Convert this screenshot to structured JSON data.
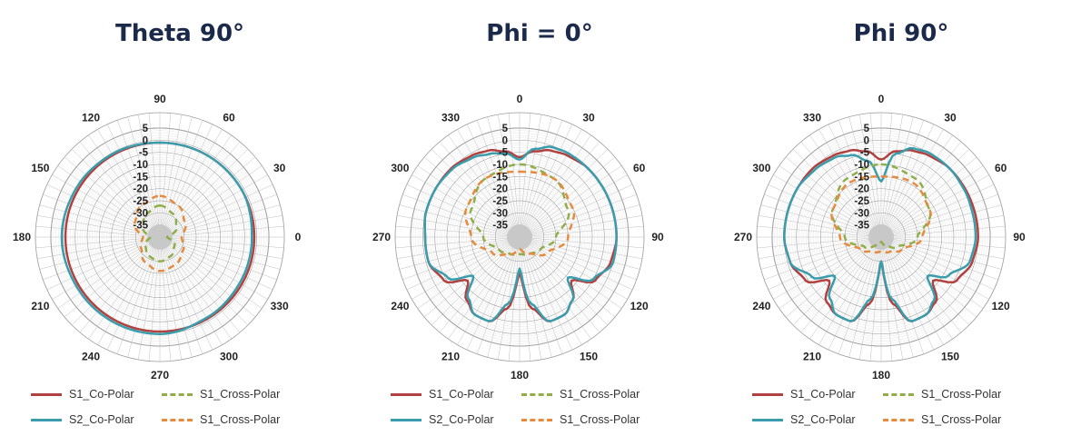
{
  "chart_data": [
    {
      "type": "polar-line",
      "title": "Theta 90°",
      "angle_labels": [
        {
          "text": "90",
          "angle": 0
        },
        {
          "text": "60",
          "angle": 30
        },
        {
          "text": "30",
          "angle": 60
        },
        {
          "text": "0",
          "angle": 90
        },
        {
          "text": "330",
          "angle": 120
        },
        {
          "text": "300",
          "angle": 150
        },
        {
          "text": "270",
          "angle": 180
        },
        {
          "text": "240",
          "angle": 210
        },
        {
          "text": "210",
          "angle": 240
        },
        {
          "text": "180",
          "angle": 270
        },
        {
          "text": "150",
          "angle": 300
        },
        {
          "text": "120",
          "angle": 330
        }
      ],
      "radial_ticks": [
        "5",
        "0",
        "-5",
        "-10",
        "-15",
        "-20",
        "-25",
        "-30",
        "-35"
      ],
      "rlim": [
        -40,
        5
      ],
      "legend_rows": [
        [
          {
            "label": "S1_Co-Polar",
            "color": "#b0413e",
            "dashed": false
          },
          {
            "label": "S1_Cross-Polar",
            "color": "#8fae4a",
            "dashed": true
          }
        ],
        [
          {
            "label": "S2_Co-Polar",
            "color": "#3a9dad",
            "dashed": false
          },
          {
            "label": "S1_Cross-Polar",
            "color": "#e68a3e",
            "dashed": true
          }
        ]
      ],
      "series": [
        {
          "name": "S1_Co-Polar",
          "color": "#b0413e",
          "dashed": false,
          "width": 2.5,
          "angles": [
            0,
            30,
            60,
            90,
            120,
            150,
            180,
            210,
            240,
            270,
            300,
            330
          ],
          "values": [
            -1,
            -1,
            -1,
            -1,
            -1,
            -1,
            -1,
            -1,
            -1,
            -1,
            -1,
            -1
          ]
        },
        {
          "name": "S2_Co-Polar",
          "color": "#3a9dad",
          "dashed": false,
          "width": 2.5,
          "angles": [
            0,
            30,
            60,
            90,
            120,
            150,
            180,
            210,
            240,
            270,
            300,
            330
          ],
          "values": [
            -1,
            -1,
            -1,
            -2,
            -2,
            -1.5,
            0,
            0,
            0,
            0.5,
            0,
            -0.5
          ]
        },
        {
          "name": "S1_Cross-Polar",
          "color": "#8fae4a",
          "dashed": true,
          "width": 2.5,
          "angles": [
            0,
            30,
            60,
            90,
            120,
            150,
            180,
            210,
            240,
            270,
            300,
            330
          ],
          "values": [
            -27,
            -29,
            -32,
            -37,
            -33,
            -31,
            -30,
            -31,
            -33,
            -36,
            -32,
            -29
          ]
        },
        {
          "name": "S1_Cross-Polar",
          "color": "#e68a3e",
          "dashed": true,
          "width": 2.5,
          "angles": [
            0,
            30,
            60,
            90,
            120,
            150,
            180,
            210,
            240,
            270,
            300,
            330
          ],
          "values": [
            -23,
            -25,
            -28,
            -31,
            -29,
            -27,
            -26,
            -28,
            -31,
            -33,
            -28,
            -25
          ]
        }
      ]
    },
    {
      "type": "polar-line",
      "title": "Phi = 0°",
      "angle_labels": [
        {
          "text": "0",
          "angle": 0
        },
        {
          "text": "30",
          "angle": 30
        },
        {
          "text": "60",
          "angle": 60
        },
        {
          "text": "90",
          "angle": 90
        },
        {
          "text": "120",
          "angle": 120
        },
        {
          "text": "150",
          "angle": 150
        },
        {
          "text": "180",
          "angle": 180
        },
        {
          "text": "210",
          "angle": 210
        },
        {
          "text": "240",
          "angle": 240
        },
        {
          "text": "270",
          "angle": 270
        },
        {
          "text": "300",
          "angle": 300
        },
        {
          "text": "330",
          "angle": 330
        }
      ],
      "radial_ticks": [
        "5",
        "0",
        "-5",
        "-10",
        "-15",
        "-20",
        "-25",
        "-30",
        "-35"
      ],
      "rlim": [
        -40,
        5
      ],
      "legend_rows": [
        [
          {
            "label": "S1_Co-Polar",
            "color": "#b0413e",
            "dashed": false
          },
          {
            "label": "S1_Cross-Polar",
            "color": "#8fae4a",
            "dashed": true
          }
        ],
        [
          {
            "label": "S2_Co-Polar",
            "color": "#3a9dad",
            "dashed": false
          },
          {
            "label": "S1_Cross-Polar",
            "color": "#e68a3e",
            "dashed": true
          }
        ]
      ],
      "series": [
        {
          "name": "S1_Co-Polar",
          "color": "#b0413e",
          "dashed": false,
          "width": 2.5,
          "angles": [
            0,
            10,
            20,
            30,
            45,
            60,
            75,
            90,
            105,
            120,
            130,
            140,
            150,
            160,
            170,
            180,
            190,
            200,
            210,
            220,
            230,
            240,
            255,
            270,
            285,
            300,
            315,
            330,
            340,
            350
          ],
          "values": [
            -7,
            -4,
            -2,
            -1,
            0,
            0,
            0,
            0,
            -1,
            -4,
            -12,
            -6,
            -3,
            -3,
            -10,
            -25,
            -10,
            -3,
            -3,
            -6,
            -12,
            -4,
            -1,
            -1,
            0,
            0,
            0,
            -1,
            -2,
            -4
          ]
        },
        {
          "name": "S2_Co-Polar",
          "color": "#3a9dad",
          "dashed": false,
          "width": 2.5,
          "angles": [
            0,
            10,
            20,
            30,
            45,
            60,
            75,
            90,
            105,
            120,
            130,
            140,
            150,
            160,
            170,
            180,
            190,
            200,
            210,
            220,
            230,
            240,
            255,
            270,
            285,
            300,
            315,
            330,
            340,
            350
          ],
          "values": [
            -8,
            -3,
            -0.5,
            0,
            0,
            0,
            0,
            0,
            0,
            -5,
            -14,
            -6,
            -3,
            -3,
            -12,
            -27,
            -12,
            -3,
            -3,
            -7,
            -15,
            -6,
            -1,
            -1,
            0,
            0,
            -0.5,
            -2,
            -3.5,
            -5
          ]
        },
        {
          "name": "S1_Cross-Polar",
          "color": "#8fae4a",
          "dashed": true,
          "width": 2.5,
          "angles": [
            0,
            30,
            60,
            90,
            120,
            150,
            180,
            210,
            240,
            270,
            300,
            330
          ],
          "values": [
            -10,
            -12,
            -17,
            -25,
            -30,
            -32,
            -33,
            -32,
            -30,
            -25,
            -17,
            -12
          ]
        },
        {
          "name": "S1_Cross-Polar",
          "color": "#e68a3e",
          "dashed": true,
          "width": 2.5,
          "angles": [
            0,
            30,
            60,
            90,
            120,
            150,
            180,
            210,
            240,
            270,
            300,
            330
          ],
          "values": [
            -13,
            -12,
            -15,
            -20,
            -27,
            -32,
            -35,
            -32,
            -27,
            -20,
            -15,
            -12
          ]
        }
      ]
    },
    {
      "type": "polar-line",
      "title": "Phi 90°",
      "angle_labels": [
        {
          "text": "0",
          "angle": 0
        },
        {
          "text": "30",
          "angle": 30
        },
        {
          "text": "60",
          "angle": 60
        },
        {
          "text": "90",
          "angle": 90
        },
        {
          "text": "120",
          "angle": 120
        },
        {
          "text": "150",
          "angle": 150
        },
        {
          "text": "180",
          "angle": 180
        },
        {
          "text": "210",
          "angle": 210
        },
        {
          "text": "240",
          "angle": 240
        },
        {
          "text": "270",
          "angle": 270
        },
        {
          "text": "300",
          "angle": 300
        },
        {
          "text": "330",
          "angle": 330
        }
      ],
      "radial_ticks": [
        "5",
        "0",
        "-5",
        "-10",
        "-15",
        "-20",
        "-25",
        "-30",
        "-35"
      ],
      "rlim": [
        -40,
        5
      ],
      "legend_rows": [
        [
          {
            "label": "S1_Co-Polar",
            "color": "#b0413e",
            "dashed": false
          },
          {
            "label": "S1_Cross-Polar",
            "color": "#8fae4a",
            "dashed": true
          }
        ],
        [
          {
            "label": "S2_Co-Polar",
            "color": "#3a9dad",
            "dashed": false
          },
          {
            "label": "S1_Cross-Polar",
            "color": "#e68a3e",
            "dashed": true
          }
        ]
      ],
      "series": [
        {
          "name": "S1_Co-Polar",
          "color": "#b0413e",
          "dashed": false,
          "width": 2.5,
          "angles": [
            0,
            10,
            20,
            30,
            45,
            60,
            75,
            90,
            105,
            120,
            130,
            140,
            150,
            160,
            170,
            180,
            190,
            200,
            210,
            220,
            230,
            240,
            255,
            270,
            285,
            300,
            315,
            330,
            340,
            350
          ],
          "values": [
            -8,
            -4,
            -2,
            -1,
            0,
            0,
            0,
            0,
            -1,
            -4,
            -12,
            -5,
            -3,
            -3,
            -12,
            -30,
            -12,
            -3,
            -3,
            -5,
            -12,
            -4,
            -1,
            0,
            0,
            0,
            0,
            -1,
            -2,
            -4
          ]
        },
        {
          "name": "S2_Co-Polar",
          "color": "#3a9dad",
          "dashed": false,
          "width": 2.5,
          "angles": [
            0,
            10,
            20,
            30,
            45,
            60,
            75,
            90,
            105,
            120,
            130,
            140,
            150,
            160,
            170,
            180,
            190,
            200,
            210,
            220,
            230,
            240,
            255,
            270,
            285,
            300,
            315,
            330,
            340,
            350
          ],
          "values": [
            -17,
            -5,
            -1,
            0,
            0,
            -0.5,
            -1,
            -1,
            -2,
            -8,
            -15,
            -6,
            -3,
            -3,
            -14,
            -30,
            -14,
            -3,
            -3,
            -7,
            -15,
            -7,
            -1,
            0,
            0,
            0,
            -1,
            -2,
            -4,
            -8
          ]
        },
        {
          "name": "S1_Cross-Polar",
          "color": "#8fae4a",
          "dashed": true,
          "width": 2.5,
          "angles": [
            0,
            30,
            60,
            90,
            120,
            150,
            180,
            210,
            240,
            270,
            300,
            330
          ],
          "values": [
            -10,
            -12,
            -17,
            -25,
            -32,
            -36,
            -38,
            -36,
            -32,
            -25,
            -17,
            -12
          ]
        },
        {
          "name": "S1_Cross-Polar",
          "color": "#e68a3e",
          "dashed": true,
          "width": 2.5,
          "angles": [
            0,
            30,
            60,
            90,
            120,
            150,
            180,
            210,
            240,
            270,
            300,
            330
          ],
          "values": [
            -15,
            -14,
            -17,
            -23,
            -30,
            -33,
            -34,
            -33,
            -30,
            -23,
            -17,
            -14
          ]
        }
      ]
    }
  ]
}
